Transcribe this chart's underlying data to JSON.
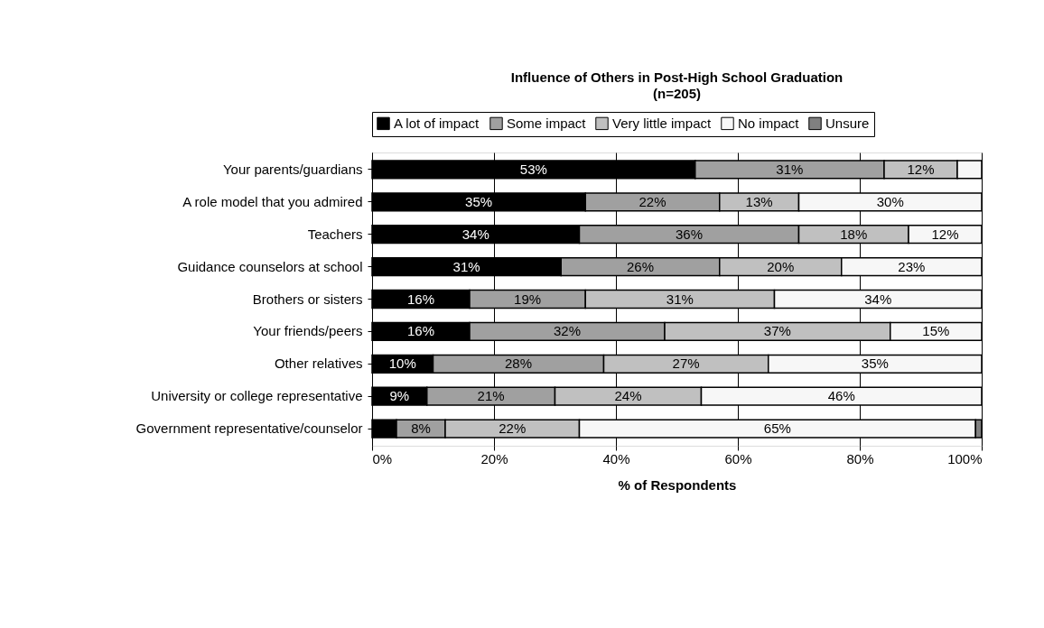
{
  "chart_data": {
    "type": "bar",
    "orientation": "horizontal",
    "stacked": true,
    "title": "Influence of Others in Post-High School Graduation",
    "subtitle": "(n=205)",
    "xlabel": "% of Respondents",
    "categories": [
      "Your parents/guardians",
      "A role model that you admired",
      "Teachers",
      "Guidance counselors at school",
      "Brothers or sisters",
      "Your friends/peers",
      "Other relatives",
      "University or college representative",
      "Government representative/counselor"
    ],
    "series": [
      {
        "name": "A lot of impact",
        "color": "#000000",
        "values": [
          53,
          35,
          34,
          31,
          16,
          16,
          10,
          9,
          4
        ],
        "value_labels": [
          "53%",
          "35%",
          "34%",
          "31%",
          "16%",
          "16%",
          "10%",
          "9%",
          null
        ]
      },
      {
        "name": "Some impact",
        "color": "#a0a0a0",
        "values": [
          31,
          22,
          36,
          26,
          19,
          32,
          28,
          21,
          8
        ],
        "value_labels": [
          "31%",
          "22%",
          "36%",
          "26%",
          "19%",
          "32%",
          "28%",
          "21%",
          "8%"
        ]
      },
      {
        "name": "Very little impact",
        "color": "#c0c0c0",
        "values": [
          12,
          13,
          18,
          20,
          31,
          37,
          27,
          24,
          22
        ],
        "value_labels": [
          "12%",
          "13%",
          "18%",
          "20%",
          "31%",
          "37%",
          "27%",
          "24%",
          "22%"
        ]
      },
      {
        "name": "No impact",
        "color": "#f7f7f7",
        "values": [
          4,
          30,
          12,
          23,
          34,
          15,
          35,
          46,
          65
        ],
        "value_labels": [
          null,
          "30%",
          "12%",
          "23%",
          "34%",
          "15%",
          "35%",
          "46%",
          "65%"
        ]
      },
      {
        "name": "Unsure",
        "color": "#808080",
        "values": [
          null,
          null,
          null,
          null,
          null,
          null,
          null,
          null,
          1
        ],
        "value_labels": [
          null,
          null,
          null,
          null,
          null,
          null,
          null,
          null,
          null
        ]
      }
    ],
    "xlim": [
      0,
      100
    ],
    "xticks": [
      {
        "value": 0,
        "label": "0%"
      },
      {
        "value": 20,
        "label": "20%"
      },
      {
        "value": 40,
        "label": "40%"
      },
      {
        "value": 60,
        "label": "60%"
      },
      {
        "value": 80,
        "label": "80%"
      },
      {
        "value": 100,
        "label": "100%"
      }
    ],
    "grid": "x",
    "legend": "top"
  }
}
